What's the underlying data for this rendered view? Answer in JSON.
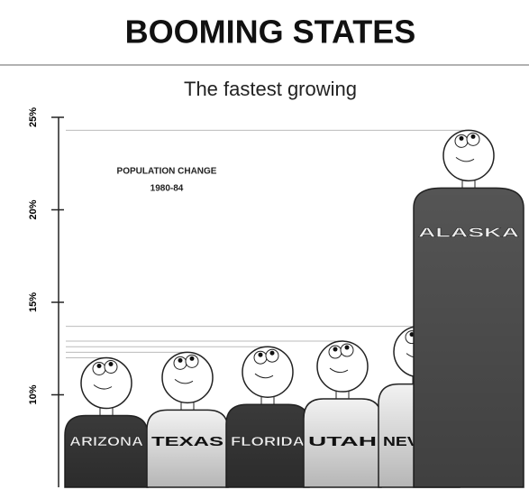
{
  "chart_data": {
    "type": "pictograph",
    "title": "BOOMING STATES",
    "subtitle": "The fastest growing",
    "annotation": [
      "POPULATION CHANGE",
      "1980-84"
    ],
    "categories": [
      "ARIZONA",
      "TEXAS",
      "FLORIDA",
      "UTAH",
      "NEVADA",
      "ALASKA"
    ],
    "values": [
      12.0,
      12.3,
      12.6,
      12.9,
      13.7,
      24.3
    ],
    "colors": [
      "#3a3a3a",
      "#f2f2f2",
      "#3a3a3a",
      "#f2f2f2",
      "#f2f2f2",
      "#555555"
    ],
    "ylim": [
      5,
      25
    ],
    "yticks": [
      {
        "value": 10,
        "label": "10%"
      },
      {
        "value": 15,
        "label": "15%"
      },
      {
        "value": 20,
        "label": "20%"
      },
      {
        "value": 25,
        "label": "25%"
      }
    ]
  }
}
